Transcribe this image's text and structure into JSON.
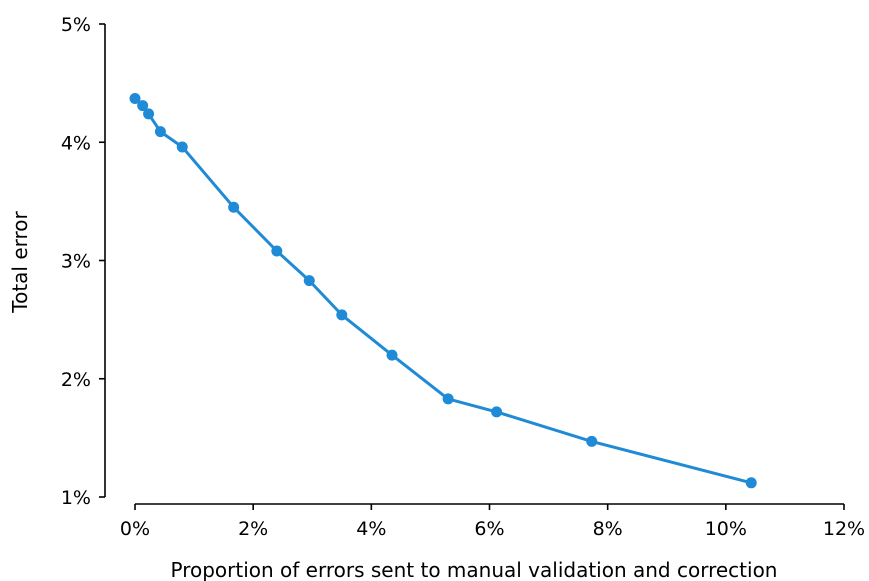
{
  "chart_data": {
    "type": "line",
    "xlabel": "Proportion of errors sent to manual validation and correction",
    "ylabel": "Total error",
    "xlim": [
      0,
      12
    ],
    "ylim": [
      1,
      5
    ],
    "x_ticks": [
      "0%",
      "2%",
      "4%",
      "6%",
      "8%",
      "10%",
      "12%"
    ],
    "y_ticks": [
      "1%",
      "2%",
      "3%",
      "4%",
      "5%"
    ],
    "grid": false,
    "line_color": "#1f8ad6",
    "series": [
      {
        "x": [
          0.0,
          0.13,
          0.23,
          0.43,
          0.8,
          1.67,
          2.4,
          2.95,
          3.5,
          4.35,
          5.3,
          6.12,
          7.73,
          10.43
        ],
        "y": [
          4.37,
          4.31,
          4.24,
          4.09,
          3.96,
          3.45,
          3.08,
          2.83,
          2.54,
          2.2,
          1.83,
          1.72,
          1.47,
          1.12
        ]
      }
    ]
  }
}
